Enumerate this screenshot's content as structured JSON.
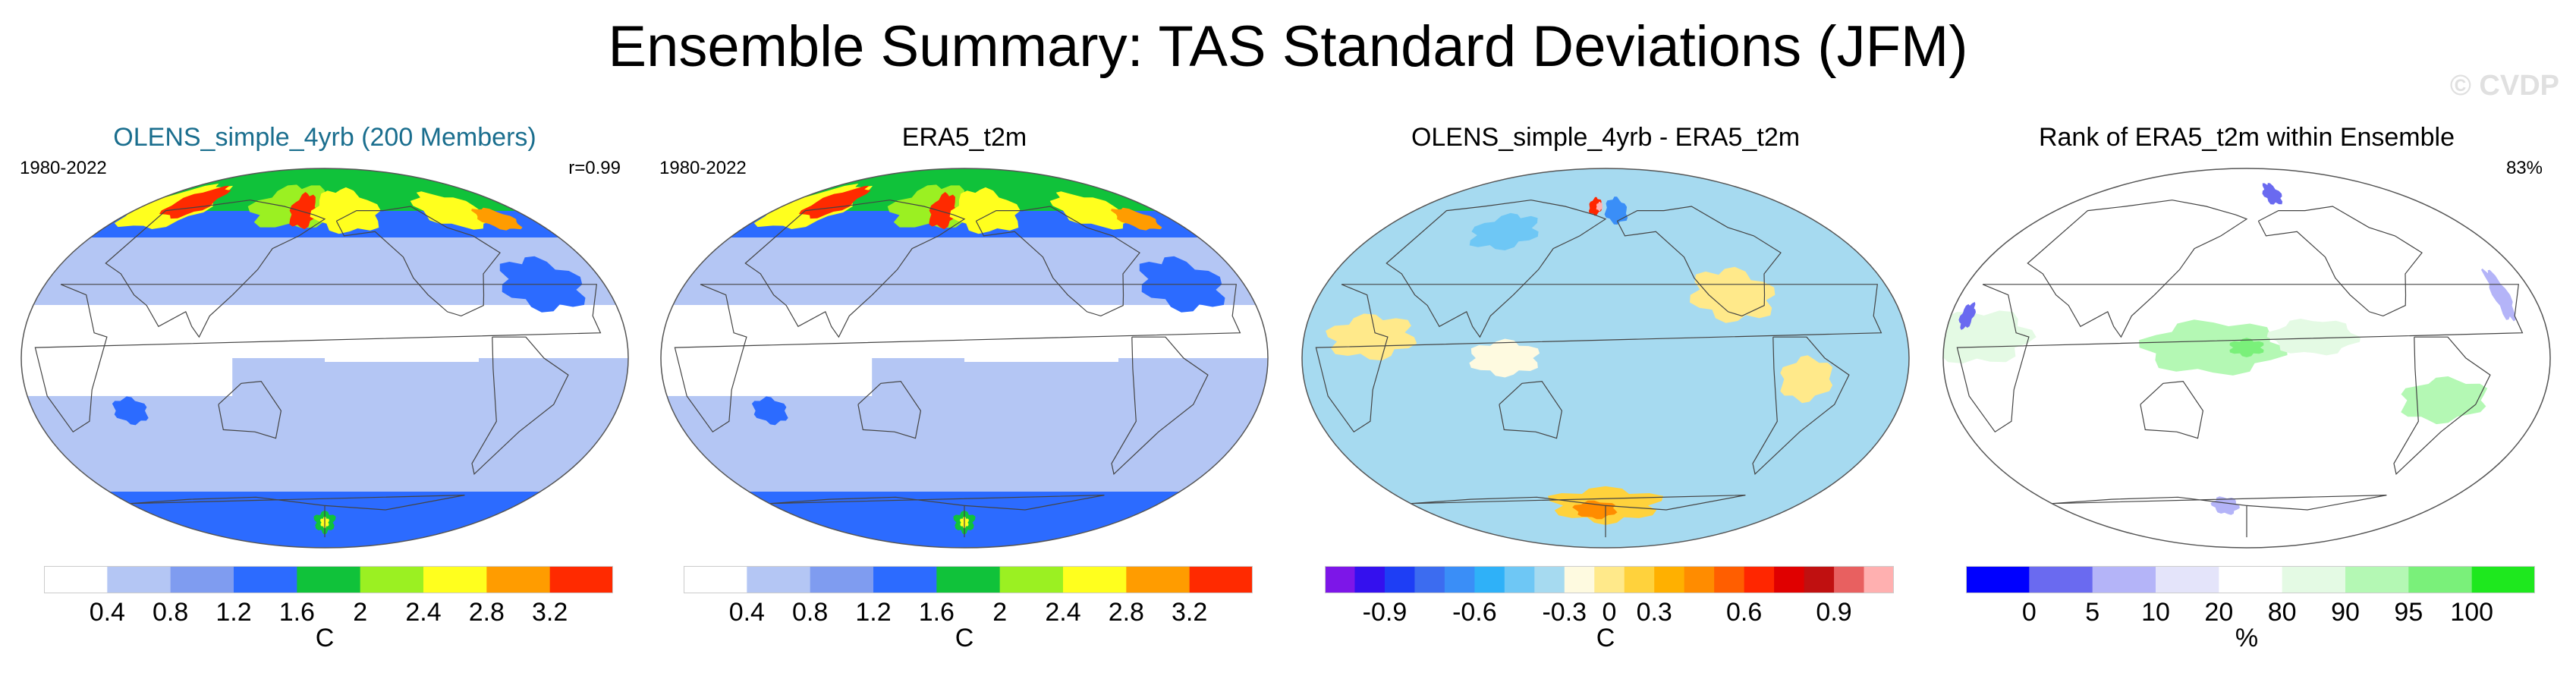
{
  "title": "Ensemble Summary: TAS Standard Deviations (JFM)",
  "watermark": "© CVDP",
  "colors": {
    "title_teal": "#1a6e8e",
    "stddev_scale": [
      "#ffffff",
      "#b4c6f4",
      "#7f9cf0",
      "#2c6bff",
      "#10c23a",
      "#9bf022",
      "#ffff1e",
      "#ff9c00",
      "#ff2a00"
    ],
    "diff_scale": [
      "#7d16e8",
      "#3410ee",
      "#1e3ef5",
      "#3c6cf0",
      "#3a8ef7",
      "#2fb1f8",
      "#6ec7f5",
      "#a6daf0",
      "#fefae0",
      "#ffe98a",
      "#ffd23c",
      "#ffb000",
      "#ff8c00",
      "#ff5e00",
      "#ff2600",
      "#e00000",
      "#c01010",
      "#e86060",
      "#ffb0b0"
    ],
    "rank_scale": [
      "#0000ff",
      "#6a6af0",
      "#b4b4f8",
      "#e4e4fa",
      "#ffffff",
      "#e4fae4",
      "#b4f8b4",
      "#7af07a",
      "#1ee81e"
    ]
  },
  "panels": [
    {
      "title": "OLENS_simple_4yrb (200 Members)",
      "period": "1980-2022",
      "stat": "r=0.99",
      "unit": "C",
      "scale": "stddev_scale",
      "field": "stddev",
      "chart_data": {
        "type": "heatmap",
        "projection": "robinson",
        "variable": "TAS standard deviation",
        "season": "JFM",
        "levels": [
          0.4,
          0.8,
          1.2,
          1.6,
          2,
          2.4,
          2.8,
          3.2
        ],
        "tick_labels": [
          "0.4",
          "0.8",
          "1.2",
          "1.6",
          "2",
          "2.4",
          "2.8",
          "3.2"
        ],
        "unit": "C"
      }
    },
    {
      "title": "ERA5_t2m",
      "period": "1980-2022",
      "stat": "",
      "unit": "C",
      "scale": "stddev_scale",
      "field": "stddev",
      "chart_data": {
        "type": "heatmap",
        "projection": "robinson",
        "variable": "TAS standard deviation",
        "season": "JFM",
        "levels": [
          0.4,
          0.8,
          1.2,
          1.6,
          2,
          2.4,
          2.8,
          3.2
        ],
        "tick_labels": [
          "0.4",
          "0.8",
          "1.2",
          "1.6",
          "2",
          "2.4",
          "2.8",
          "3.2"
        ],
        "unit": "C"
      }
    },
    {
      "title": "OLENS_simple_4yrb - ERA5_t2m",
      "period": "",
      "stat": "",
      "unit": "C",
      "scale": "diff_scale",
      "field": "diff",
      "chart_data": {
        "type": "heatmap",
        "projection": "robinson",
        "variable": "TAS standard deviation difference",
        "season": "JFM",
        "levels": [
          -0.9,
          -0.6,
          -0.3,
          0,
          0.3,
          0.6,
          0.9
        ],
        "tick_labels": [
          "-0.9",
          "-0.6",
          "-0.3",
          "0",
          "0.3",
          "0.6",
          "0.9"
        ],
        "unit": "C"
      }
    },
    {
      "title": "Rank of ERA5_t2m within Ensemble",
      "period": "",
      "stat": "83%",
      "unit": "%",
      "scale": "rank_scale",
      "field": "rank",
      "chart_data": {
        "type": "heatmap",
        "projection": "robinson",
        "variable": "Rank of ERA5_t2m within ensemble",
        "season": "JFM",
        "levels": [
          0,
          5,
          10,
          20,
          80,
          90,
          95,
          100
        ],
        "tick_labels": [
          "0",
          "5",
          "10",
          "20",
          "80",
          "90",
          "95",
          "100"
        ],
        "unit": "%"
      }
    }
  ]
}
